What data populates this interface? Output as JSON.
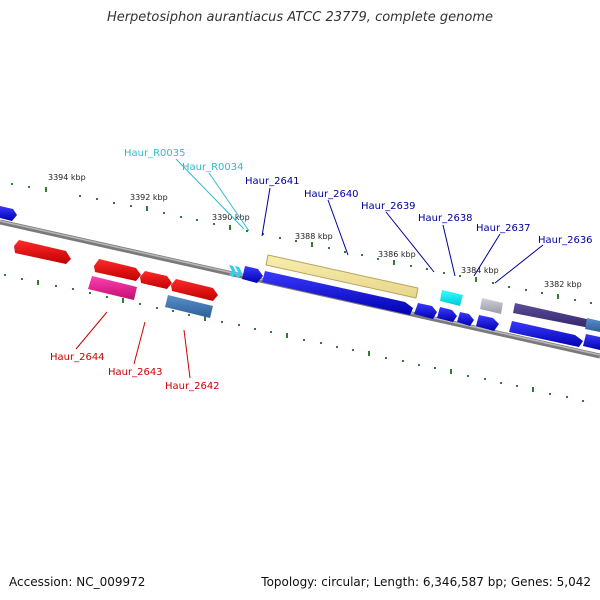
{
  "title": "Herpetosiphon aurantiacus ATCC 23779, complete genome",
  "footer": {
    "accession_label": "Accession:",
    "accession": "NC_009972",
    "topology_label": "Topology:",
    "topology": "circular;",
    "length_label": "Length:",
    "length": "6,346,587 bp;",
    "genes_label": "Genes:",
    "genes": "5,042"
  },
  "colors": {
    "backbone": "#888888",
    "tick": "#2e7d32",
    "minus_label": "#cc0000",
    "plus_label": "#000099",
    "rna_label": "#33bbcc"
  },
  "ruler_labels": [
    "3394 kbp",
    "3392 kbp",
    "3390 kbp",
    "3388 kbp",
    "3386 kbp",
    "3384 kbp",
    "3382 kbp"
  ],
  "gene_labels": {
    "rna_0035": "Haur_R0035",
    "rna_0034": "Haur_R0034",
    "g2641": "Haur_2641",
    "g2640": "Haur_2640",
    "g2639": "Haur_2639",
    "g2638": "Haur_2638",
    "g2637": "Haur_2637",
    "g2636": "Haur_2636",
    "g2644": "Haur_2644",
    "g2643": "Haur_2643",
    "g2642": "Haur_2642"
  }
}
